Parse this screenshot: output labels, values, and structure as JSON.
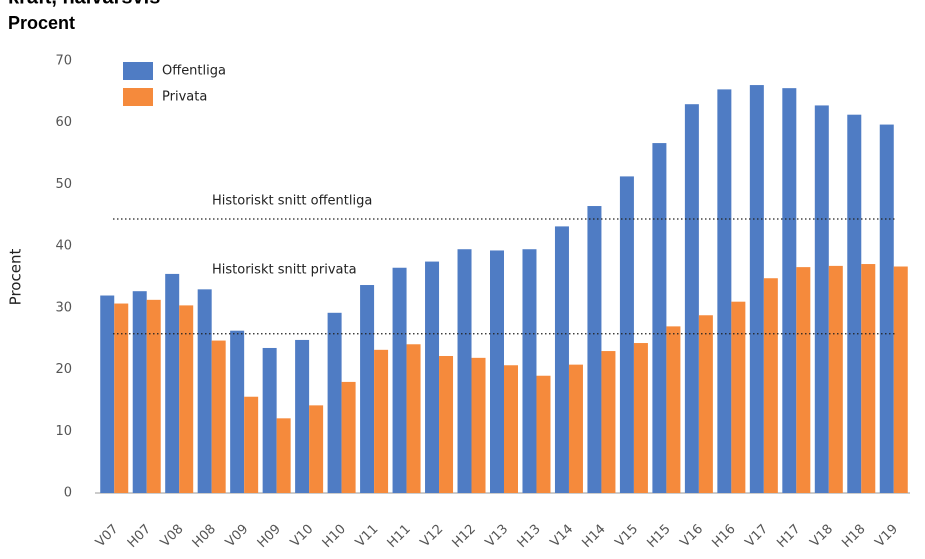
{
  "chart_data": {
    "type": "bar",
    "title": "kraft, halvårsvis",
    "subtitle": "Procent",
    "y_label": "Procent",
    "categories": [
      "V07",
      "H07",
      "V08",
      "H08",
      "V09",
      "H09",
      "V10",
      "H10",
      "V11",
      "H11",
      "V12",
      "H12",
      "V13",
      "H13",
      "V14",
      "H14",
      "V15",
      "H15",
      "V16",
      "H16",
      "V17",
      "H17",
      "V18",
      "H18",
      "V19"
    ],
    "series": [
      {
        "name": "Offentliga",
        "color": "#4f7cc4",
        "values": [
          32,
          32.7,
          35.5,
          33,
          26.3,
          23.5,
          24.8,
          29.2,
          33.7,
          36.5,
          37.5,
          39.5,
          39.3,
          39.5,
          43.2,
          46.5,
          51.3,
          56.7,
          63,
          65.4,
          66.1,
          65.6,
          62.8,
          61.3,
          59.7
        ]
      },
      {
        "name": "Privata",
        "color": "#f58a3c",
        "values": [
          30.7,
          31.3,
          30.4,
          24.7,
          15.6,
          12.1,
          14.2,
          18,
          23.2,
          24.1,
          22.2,
          21.9,
          20.7,
          19,
          20.8,
          23,
          24.3,
          27,
          28.8,
          31,
          34.8,
          36.6,
          36.8,
          37.1,
          36.7
        ]
      }
    ],
    "reference_lines": [
      {
        "label": "Historiskt snitt offentliga",
        "value": 44.4
      },
      {
        "label": "Historiskt snitt privata",
        "value": 25.8
      }
    ],
    "ylim": [
      0,
      70
    ],
    "yticks": [
      0,
      10,
      20,
      30,
      40,
      50,
      60,
      70
    ],
    "legend": "upper left"
  }
}
